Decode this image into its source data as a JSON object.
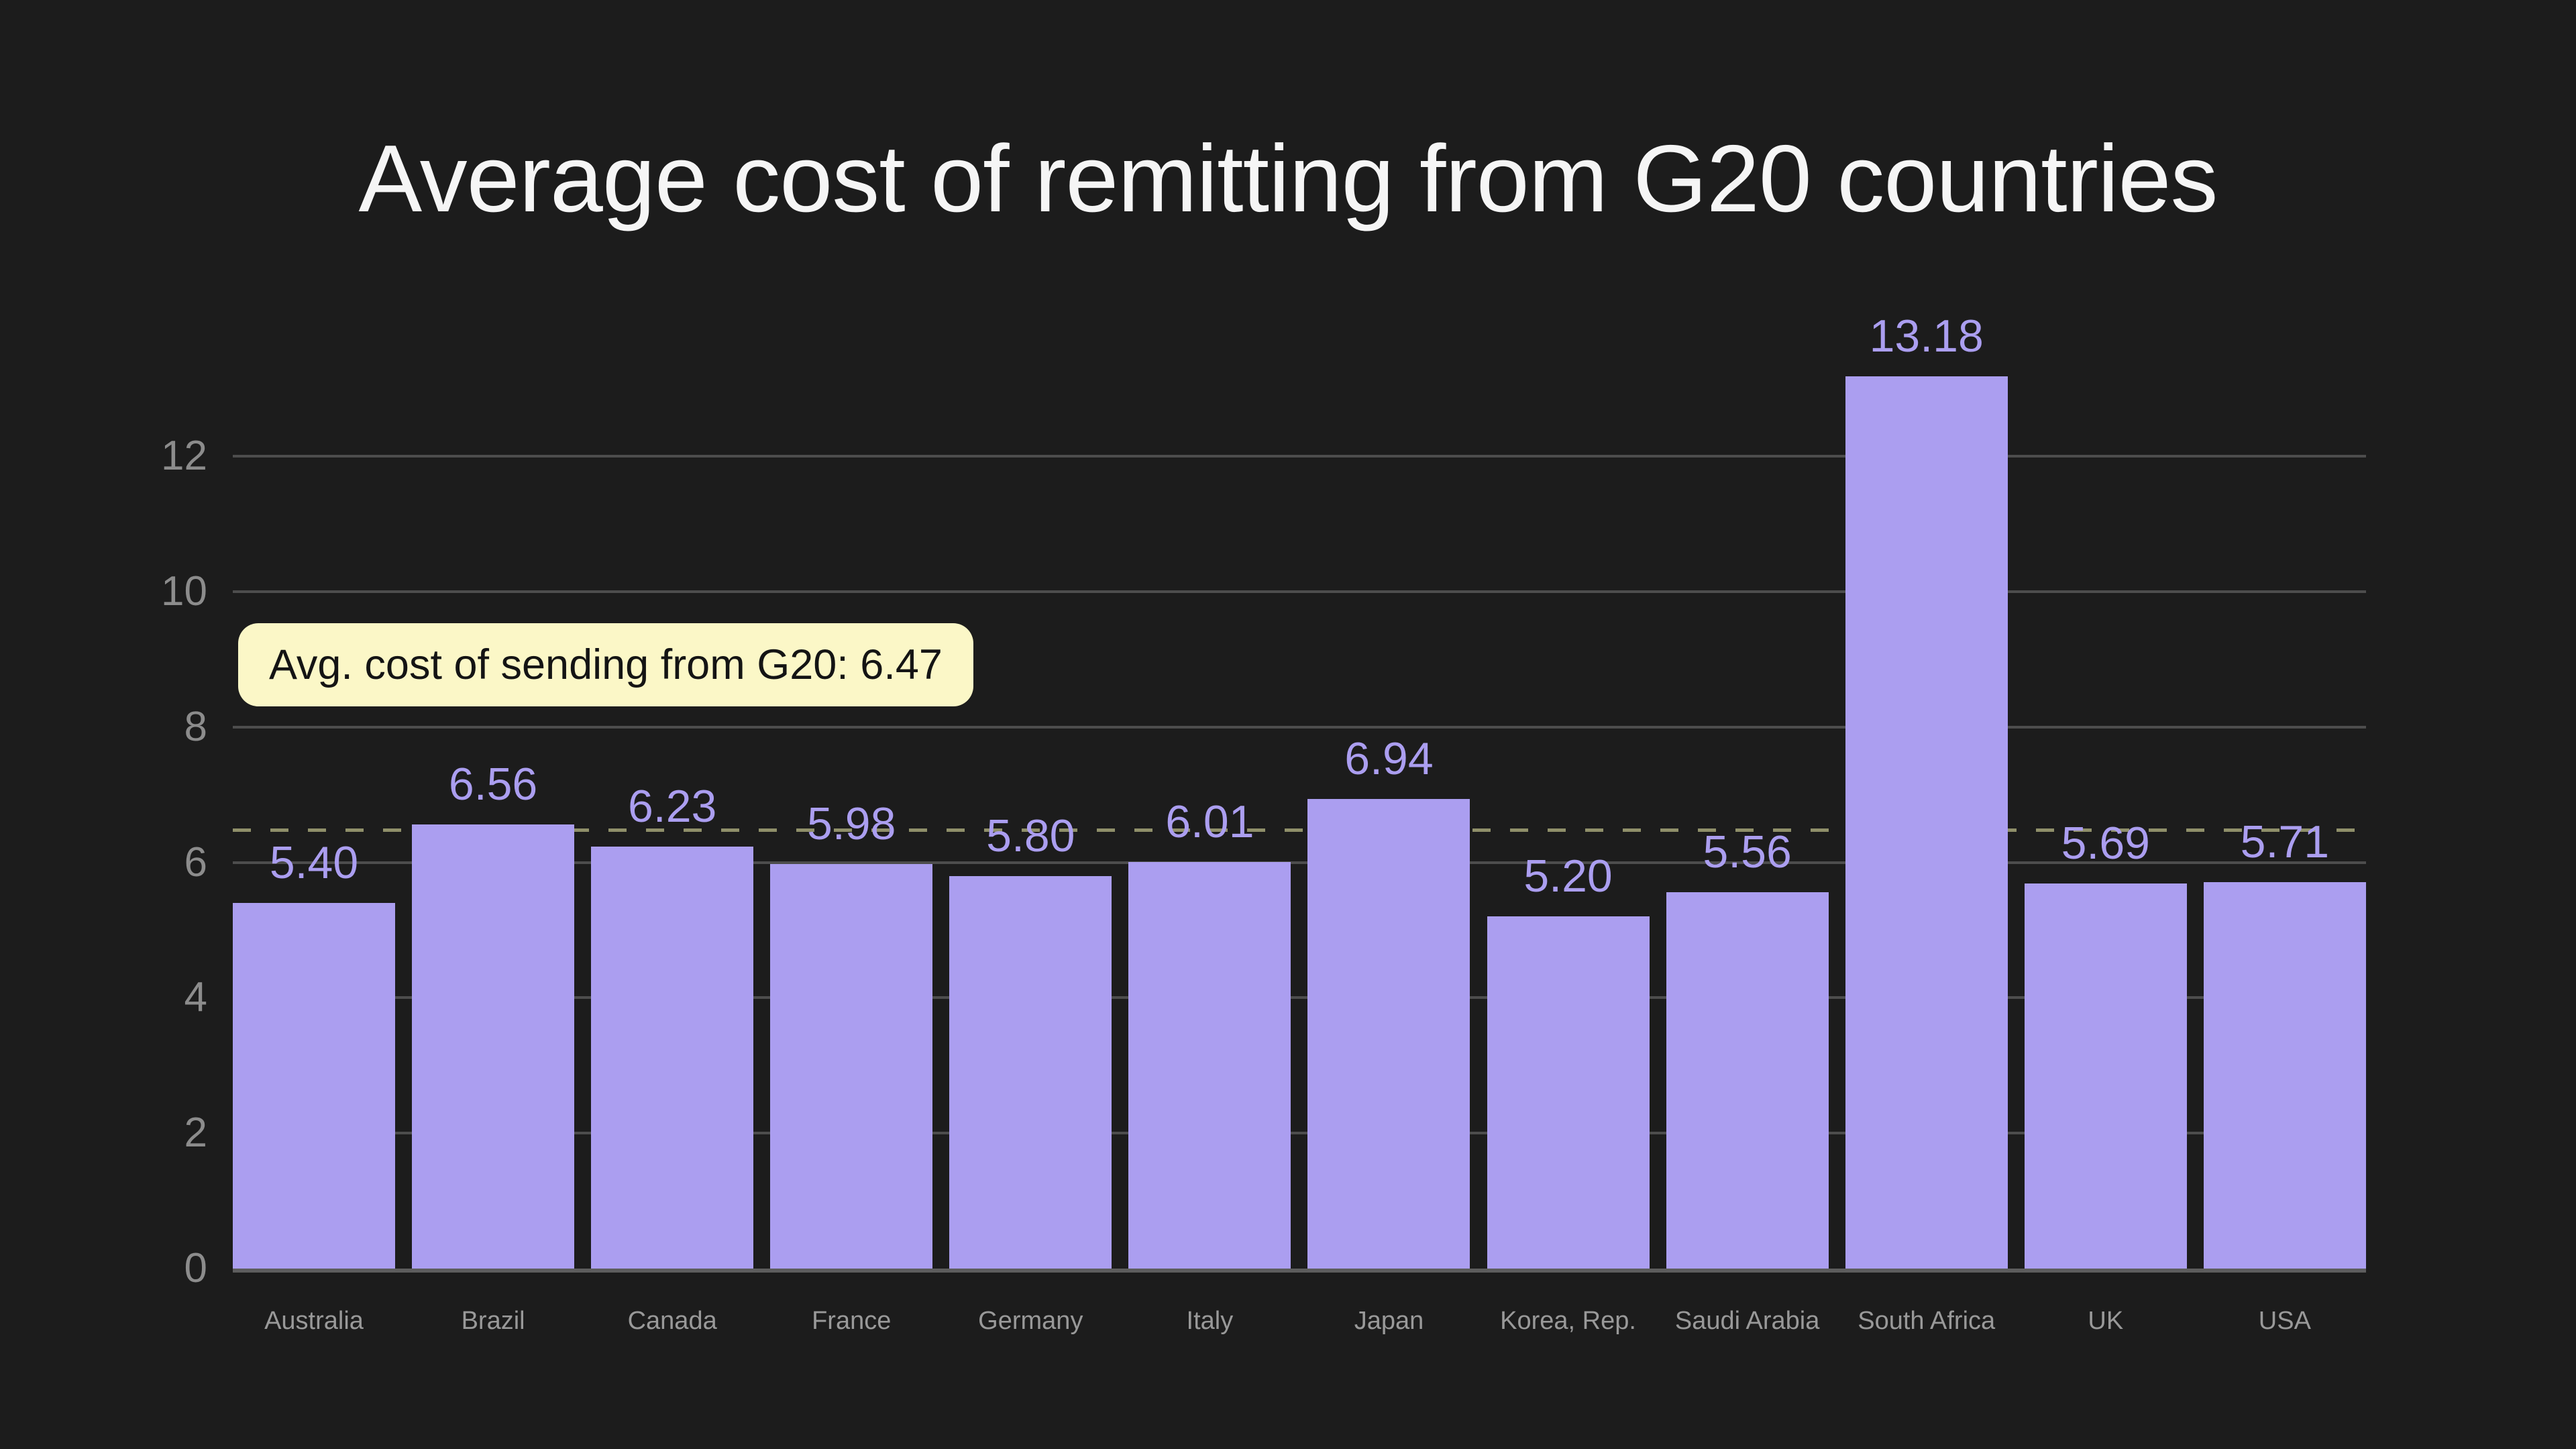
{
  "title": "Average cost of remitting from G20 countries",
  "annotation": {
    "label": "Avg. cost of sending from G20: 6.47",
    "value": 6.47
  },
  "chart_data": {
    "type": "bar",
    "title": "Average cost of remitting from G20 countries",
    "categories": [
      "Australia",
      "Brazil",
      "Canada",
      "France",
      "Germany",
      "Italy",
      "Japan",
      "Korea, Rep.",
      "Saudi Arabia",
      "South Africa",
      "UK",
      "USA"
    ],
    "values": [
      5.4,
      6.56,
      6.23,
      5.98,
      5.8,
      6.01,
      6.94,
      5.2,
      5.56,
      13.18,
      5.69,
      5.71
    ],
    "value_labels": [
      "5.40",
      "6.56",
      "6.23",
      "5.98",
      "5.80",
      "6.01",
      "6.94",
      "5.20",
      "5.56",
      "13.18",
      "5.69",
      "5.71"
    ],
    "xlabel": "",
    "ylabel": "",
    "ylim": [
      0,
      13.18
    ],
    "yticks": [
      0,
      2,
      4,
      6,
      8,
      10,
      12
    ],
    "grid": "horizontal",
    "legend": "none",
    "reference_line": {
      "value": 6.47,
      "style": "dashed",
      "label": "Avg. cost of sending from G20: 6.47"
    },
    "colors": {
      "background": "#1c1c1c",
      "bar": "#ab9ef0",
      "grid": "#4d4d4d",
      "baseline": "#5d5d5d",
      "axis_text": "#8c8c8c",
      "category_text": "#999999",
      "reference_line": "#90906a",
      "annotation_bg": "#fbf7c7",
      "annotation_text": "#141414",
      "title_text": "#f5f5f5"
    }
  }
}
